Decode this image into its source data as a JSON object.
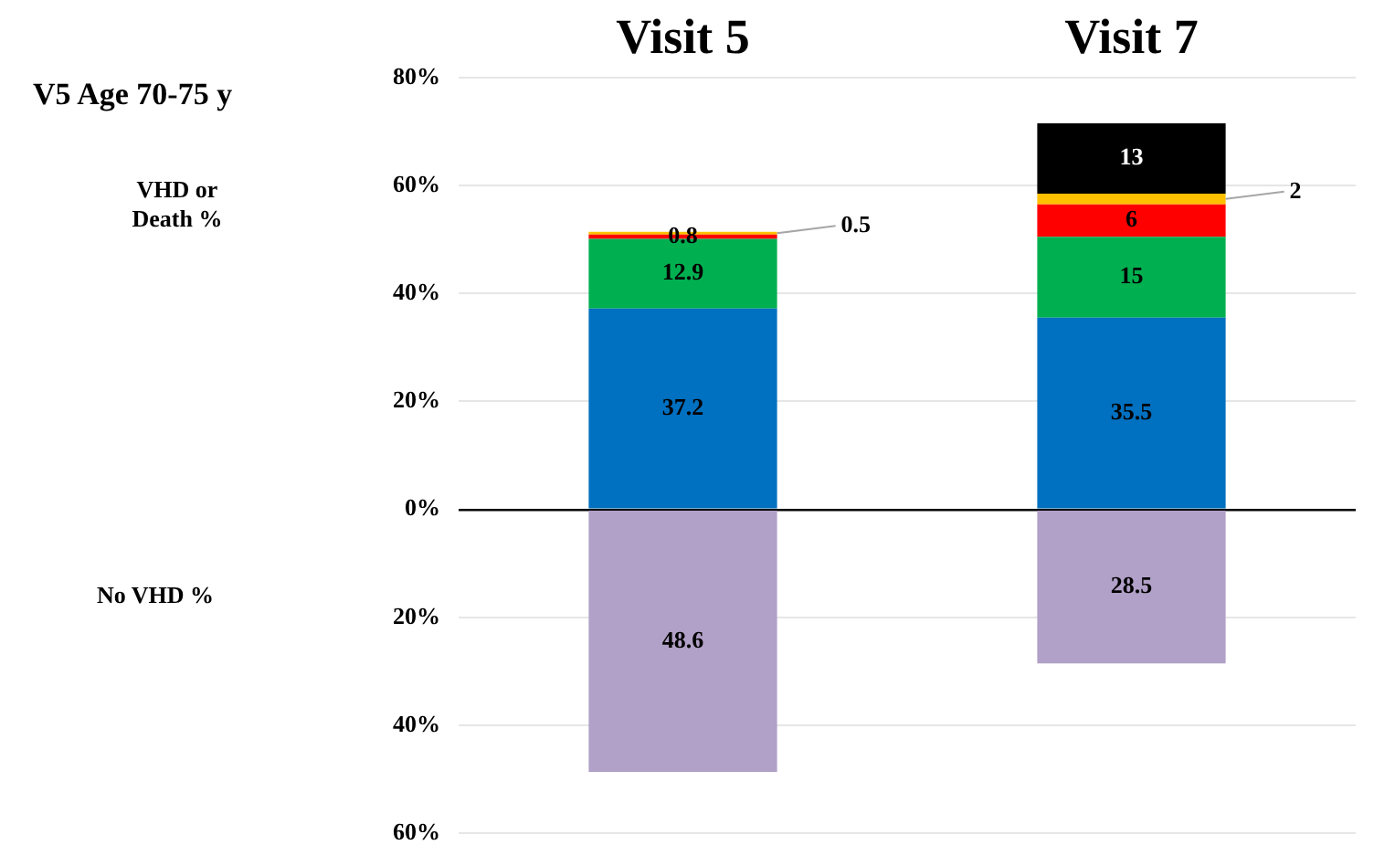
{
  "chart_data": {
    "type": "bar",
    "stacked": true,
    "categories": [
      "Visit 5",
      "Visit 7"
    ],
    "series": [
      {
        "color": "#b1a0c7",
        "values": [
          -48.6,
          -28.5
        ]
      },
      {
        "color": "#0070c0",
        "values": [
          37.2,
          35.5
        ],
        "value_labels": [
          "37.2",
          "35.5"
        ]
      },
      {
        "color": "#00b050",
        "values": [
          12.9,
          15
        ],
        "value_labels": [
          "12.9",
          "15"
        ]
      },
      {
        "color": "#ff0000",
        "values": [
          0.8,
          6
        ],
        "value_labels": [
          "0.8",
          "6"
        ]
      },
      {
        "color": "#ffc000",
        "values": [
          0.5,
          2
        ],
        "value_labels": [
          "0.5",
          "2"
        ]
      },
      {
        "color": "#000000",
        "values": [
          null,
          13
        ],
        "value_labels": [
          null,
          "13"
        ]
      }
    ],
    "ylim": [
      -60,
      80
    ],
    "yticks": [
      {
        "value": 80,
        "label": "80%"
      },
      {
        "value": 60,
        "label": "60%"
      },
      {
        "value": 40,
        "label": "40%"
      },
      {
        "value": 20,
        "label": "20%"
      },
      {
        "value": 0,
        "label": "0%"
      },
      {
        "value": -20,
        "label": "20%"
      },
      {
        "value": -40,
        "label": "40%"
      },
      {
        "value": -60,
        "label": "60%"
      }
    ],
    "grid": "y",
    "legend": false,
    "annotations": [
      "V5 Age 70-75 y",
      "VHD or Death %",
      "No VHD %",
      "48.6",
      "28.5"
    ]
  }
}
